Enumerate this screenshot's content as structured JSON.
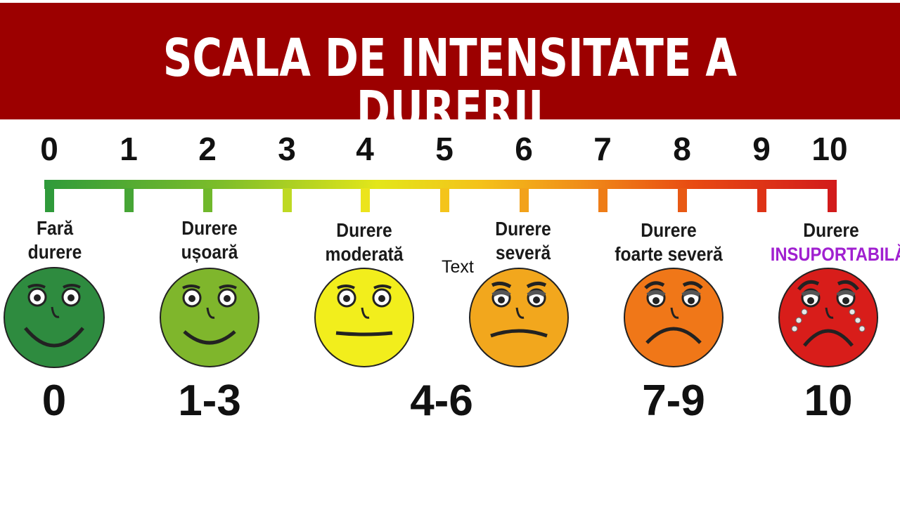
{
  "header": {
    "title": "SCALA DE INTENSITATE A DURERII",
    "background_color": "#9c0000"
  },
  "scale": {
    "numbers": [
      "0",
      "1",
      "2",
      "3",
      "4",
      "5",
      "6",
      "7",
      "8",
      "9",
      "10"
    ],
    "gradient_colors": [
      "#2e9a3a",
      "#7cbd2a",
      "#e3e61a",
      "#f4c21a",
      "#f08c18",
      "#e84a12",
      "#d21b1b"
    ]
  },
  "levels": [
    {
      "line1": "Fară",
      "line2": "durere",
      "range": "0",
      "face_color": "#2e8b3f",
      "expression": "big-smile"
    },
    {
      "line1": "Durere",
      "line2": "ușoară",
      "range": "1-3",
      "face_color": "#7fb62c",
      "expression": "smile"
    },
    {
      "line1": "Durere",
      "line2": "moderată",
      "range": "4-6",
      "face_color": "#f2ee1c",
      "expression": "neutral"
    },
    {
      "line1": "Durere",
      "line2": "severă",
      "range": "",
      "face_color": "#f2a71d",
      "expression": "slight-frown"
    },
    {
      "line1": "Durere",
      "line2": "foarte severă",
      "range": "7-9",
      "face_color": "#f07718",
      "expression": "frown"
    },
    {
      "line1": "Durere",
      "line2": "INSUPORTABILĂ",
      "range": "10",
      "face_color": "#d81d1a",
      "expression": "crying",
      "line2_color": "#a020d0"
    }
  ],
  "stray_text": "Text"
}
